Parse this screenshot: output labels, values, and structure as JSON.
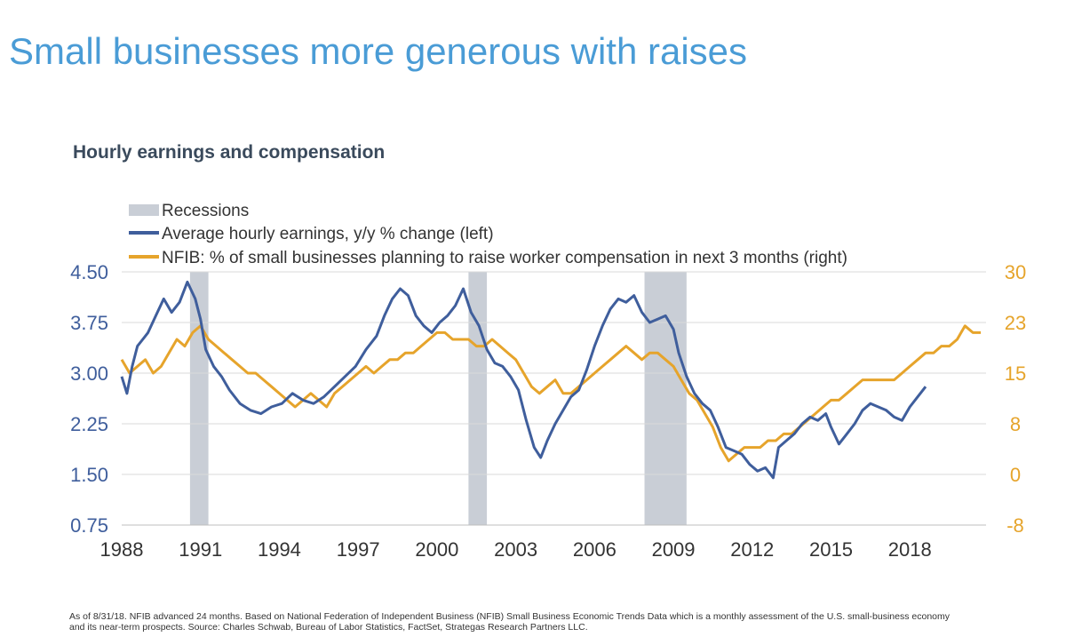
{
  "title": "Small businesses more generous with raises",
  "footnote": "As of 8/31/18. NFIB advanced 24 months. Based on National Federation of Independent Business (NFIB) Small  Business Economic Trends Data which is a monthly assessment of the U.S. small-business economy and its near-term prospects. Source: Charles Schwab, Bureau of Labor Statistics, FactSet, Strategas Research Partners LLC.",
  "colors": {
    "title": "#4a9cd6",
    "ahe": "#3f5e9c",
    "nfib": "#e6a42b",
    "recession": "#c9ced6",
    "grid": "#d9d9d9"
  },
  "chart_data": {
    "type": "line",
    "title": "Hourly earnings and compensation",
    "legend_position": "top-left",
    "grid": true,
    "x_ticks": [
      "1988",
      "1991",
      "1994",
      "1997",
      "2000",
      "2003",
      "2006",
      "2009",
      "2012",
      "2015",
      "2018"
    ],
    "xlim": [
      1988,
      2020.9
    ],
    "y_left": {
      "ticks": [
        "4.50",
        "3.75",
        "3.00",
        "2.25",
        "1.50",
        "0.75"
      ],
      "ylim": [
        0.75,
        4.5
      ]
    },
    "y_right": {
      "ticks": [
        "30",
        "23",
        "15",
        "8",
        "0",
        "-8"
      ],
      "ylim": [
        -7.5,
        30
      ]
    },
    "recessions": {
      "name": "Recessions",
      "periods": [
        [
          1990.6,
          1991.3
        ],
        [
          2001.2,
          2001.9
        ],
        [
          2007.9,
          2009.5
        ]
      ]
    },
    "series": [
      {
        "name": "Average hourly earnings, y/y % change (left)",
        "axis": "left",
        "x": [
          1988.0,
          1988.2,
          1988.4,
          1988.6,
          1988.8,
          1989.0,
          1989.3,
          1989.6,
          1989.9,
          1990.2,
          1990.5,
          1990.8,
          1991.0,
          1991.2,
          1991.5,
          1991.8,
          1992.1,
          1992.5,
          1992.9,
          1993.3,
          1993.7,
          1994.1,
          1994.5,
          1994.9,
          1995.3,
          1995.7,
          1996.1,
          1996.5,
          1996.9,
          1997.3,
          1997.7,
          1998.0,
          1998.3,
          1998.6,
          1998.9,
          1999.2,
          1999.5,
          1999.8,
          2000.1,
          2000.4,
          2000.7,
          2001.0,
          2001.3,
          2001.6,
          2001.9,
          2002.2,
          2002.5,
          2002.8,
          2003.1,
          2003.4,
          2003.7,
          2003.95,
          2004.2,
          2004.5,
          2004.8,
          2005.1,
          2005.4,
          2005.7,
          2006.0,
          2006.3,
          2006.6,
          2006.9,
          2007.2,
          2007.5,
          2007.8,
          2008.1,
          2008.4,
          2008.7,
          2009.0,
          2009.2,
          2009.5,
          2009.8,
          2010.1,
          2010.4,
          2010.7,
          2011.0,
          2011.3,
          2011.6,
          2011.9,
          2012.2,
          2012.5,
          2012.8,
          2013.0,
          2013.3,
          2013.6,
          2013.9,
          2014.2,
          2014.5,
          2014.8,
          2015.0,
          2015.3,
          2015.6,
          2015.9,
          2016.2,
          2016.5,
          2016.8,
          2017.1,
          2017.4,
          2017.7,
          2018.0,
          2018.3,
          2018.6
        ],
        "y": [
          2.95,
          2.7,
          3.1,
          3.4,
          3.5,
          3.6,
          3.85,
          4.1,
          3.9,
          4.05,
          4.35,
          4.1,
          3.8,
          3.35,
          3.1,
          2.95,
          2.75,
          2.55,
          2.45,
          2.4,
          2.5,
          2.55,
          2.7,
          2.6,
          2.55,
          2.65,
          2.8,
          2.95,
          3.1,
          3.35,
          3.55,
          3.85,
          4.1,
          4.25,
          4.15,
          3.85,
          3.7,
          3.6,
          3.75,
          3.85,
          4.0,
          4.25,
          3.9,
          3.7,
          3.35,
          3.15,
          3.1,
          2.95,
          2.75,
          2.3,
          1.9,
          1.75,
          2.0,
          2.25,
          2.45,
          2.65,
          2.75,
          3.05,
          3.4,
          3.7,
          3.95,
          4.1,
          4.05,
          4.15,
          3.9,
          3.75,
          3.8,
          3.85,
          3.65,
          3.3,
          2.95,
          2.7,
          2.55,
          2.45,
          2.2,
          1.9,
          1.85,
          1.8,
          1.65,
          1.55,
          1.6,
          1.45,
          1.9,
          2.0,
          2.1,
          2.25,
          2.35,
          2.3,
          2.4,
          2.2,
          1.95,
          2.1,
          2.25,
          2.45,
          2.55,
          2.5,
          2.45,
          2.35,
          2.3,
          2.5,
          2.65,
          2.8
        ]
      },
      {
        "name": "NFIB: % of small businesses planning to raise worker compensation in next 3 months (right)",
        "axis": "right",
        "x": [
          1988.0,
          1988.3,
          1988.6,
          1988.9,
          1989.2,
          1989.5,
          1989.8,
          1990.1,
          1990.4,
          1990.7,
          1991.0,
          1991.3,
          1991.6,
          1991.9,
          1992.2,
          1992.5,
          1992.8,
          1993.1,
          1993.4,
          1993.7,
          1994.0,
          1994.3,
          1994.6,
          1994.9,
          1995.2,
          1995.5,
          1995.8,
          1996.1,
          1996.4,
          1996.7,
          1997.0,
          1997.3,
          1997.6,
          1997.9,
          1998.2,
          1998.5,
          1998.8,
          1999.1,
          1999.4,
          1999.7,
          2000.0,
          2000.3,
          2000.6,
          2000.9,
          2001.2,
          2001.5,
          2001.8,
          2002.1,
          2002.4,
          2002.7,
          2003.0,
          2003.3,
          2003.6,
          2003.9,
          2004.2,
          2004.5,
          2004.8,
          2005.1,
          2005.4,
          2005.7,
          2006.0,
          2006.3,
          2006.6,
          2006.9,
          2007.2,
          2007.5,
          2007.8,
          2008.1,
          2008.4,
          2008.7,
          2009.0,
          2009.3,
          2009.6,
          2009.9,
          2010.2,
          2010.5,
          2010.8,
          2011.1,
          2011.4,
          2011.7,
          2012.0,
          2012.3,
          2012.6,
          2012.9,
          2013.2,
          2013.5,
          2013.8,
          2014.1,
          2014.4,
          2014.7,
          2015.0,
          2015.3,
          2015.6,
          2015.9,
          2016.2,
          2016.5,
          2016.8,
          2017.1,
          2017.4,
          2017.7,
          2018.0,
          2018.3,
          2018.6,
          2018.9,
          2019.2,
          2019.5,
          2019.8,
          2020.1,
          2020.4,
          2020.7
        ],
        "y": [
          17,
          15,
          16,
          17,
          15,
          16,
          18,
          20,
          19,
          21,
          22,
          20,
          19,
          18,
          17,
          16,
          15,
          15,
          14,
          13,
          12,
          11,
          10,
          11,
          12,
          11,
          10,
          12,
          13,
          14,
          15,
          16,
          15,
          16,
          17,
          17,
          18,
          18,
          19,
          20,
          21,
          21,
          20,
          20,
          20,
          19,
          19,
          20,
          19,
          18,
          17,
          15,
          13,
          12,
          13,
          14,
          12,
          12,
          13,
          14,
          15,
          16,
          17,
          18,
          19,
          18,
          17,
          18,
          18,
          17,
          16,
          14,
          12,
          11,
          9,
          7,
          4,
          2,
          3,
          4,
          4,
          4,
          5,
          5,
          6,
          6,
          7,
          8,
          9,
          10,
          11,
          11,
          12,
          13,
          14,
          14,
          14,
          14,
          14,
          15,
          16,
          17,
          18,
          18,
          19,
          19,
          20,
          22,
          21,
          21
        ]
      }
    ]
  }
}
